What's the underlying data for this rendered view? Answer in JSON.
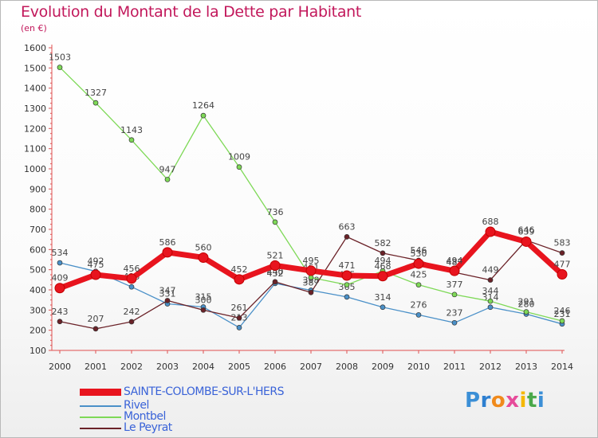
{
  "chart_data": {
    "type": "line",
    "title": "Evolution du Montant de la Dette par Habitant",
    "subtitle": "(en €)",
    "xlabel": "",
    "ylabel": "",
    "categories": [
      "2000",
      "2001",
      "2002",
      "2003",
      "2004",
      "2005",
      "2006",
      "2007",
      "2008",
      "2009",
      "2010",
      "2011",
      "2012",
      "2013",
      "2014"
    ],
    "ylim": [
      100,
      1600
    ],
    "yticks": [
      100,
      200,
      300,
      400,
      500,
      600,
      700,
      800,
      900,
      1000,
      1100,
      1200,
      1300,
      1400,
      1500,
      1600
    ],
    "grid": false,
    "legend_position": "bottom-left",
    "series": [
      {
        "name": "Rivel",
        "color": "#4a90c8",
        "values": [
          534,
          492,
          415,
          331,
          315,
          213,
          432,
          398,
          365,
          314,
          276,
          237,
          314,
          280,
          231
        ]
      },
      {
        "name": "Montbel",
        "color": "#7ed957",
        "values": [
          1503,
          1327,
          1143,
          947,
          1264,
          1009,
          736,
          461,
          425,
          494,
          425,
          377,
          344,
          291,
          246
        ]
      },
      {
        "name": "Le Peyrat",
        "color": "#6b2228",
        "values": [
          243,
          207,
          242,
          347,
          300,
          261,
          440,
          387,
          663,
          582,
          546,
          487,
          449,
          646,
          583
        ]
      },
      {
        "name": "SAINTE-COLOMBE-SUR-L'HERS",
        "color": "#e8141e",
        "values": [
          409,
          475,
          456,
          586,
          560,
          452,
          521,
          495,
          471,
          468,
          530,
          494,
          688,
          639,
          477
        ]
      }
    ],
    "legend_order": [
      "SAINTE-COLOMBE-SUR-L'HERS",
      "Rivel",
      "Montbel",
      "Le Peyrat"
    ]
  },
  "logo": {
    "text": "Proxiti"
  }
}
